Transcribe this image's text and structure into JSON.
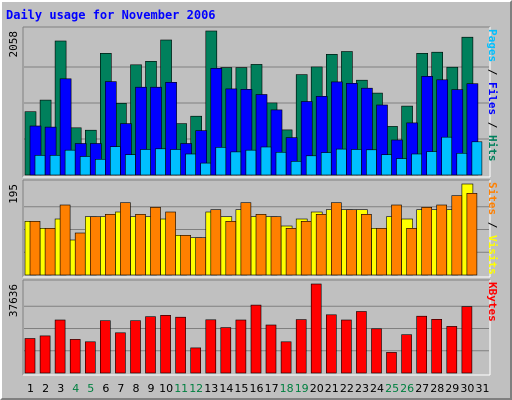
{
  "colors": {
    "background": "#c0c0c0",
    "hits": "#00805c",
    "files": "#0000ff",
    "pages": "#00c0ff",
    "visits": "#ffff00",
    "sites": "#ff8000",
    "kbytes": "#ff0000",
    "title": "#0000ff",
    "weekend_label": "#008040",
    "weekday_label": "#000000"
  },
  "chart_data": {
    "title": "Daily usage for November 2006",
    "days": [
      "1",
      "2",
      "3",
      "4",
      "5",
      "6",
      "7",
      "8",
      "9",
      "10",
      "11",
      "12",
      "13",
      "14",
      "15",
      "16",
      "17",
      "18",
      "19",
      "20",
      "21",
      "22",
      "23",
      "24",
      "25",
      "26",
      "27",
      "28",
      "29",
      "30",
      "31"
    ],
    "weekend_days": [
      "4",
      "5",
      "11",
      "12",
      "18",
      "19",
      "25",
      "26"
    ],
    "panels": [
      {
        "type": "bar",
        "ymax_label": "2058",
        "ymax": 2058,
        "label_parts": [
          {
            "text": "Pages",
            "color": "#00c0ff"
          },
          {
            "text": " / ",
            "color": "#000000"
          },
          {
            "text": "Files",
            "color": "#0000ff"
          },
          {
            "text": " / ",
            "color": "#000000"
          },
          {
            "text": "Hits",
            "color": "#00805c"
          }
        ],
        "series": [
          {
            "name": "Hits",
            "color": "#00805c",
            "values": [
              905,
              1070,
              1915,
              675,
              640,
              1740,
              1025,
              1575,
              1625,
              1930,
              735,
              840,
              2058,
              1535,
              1535,
              1580,
              1030,
              645,
              1435,
              1545,
              1725,
              1765,
              1355,
              1170,
              695,
              985,
              1740,
              1755,
              1540,
              1970,
              0
            ]
          },
          {
            "name": "Files",
            "color": "#0000ff",
            "values": [
              700,
              685,
              1375,
              450,
              450,
              1335,
              735,
              1255,
              1255,
              1325,
              450,
              635,
              1525,
              1230,
              1225,
              1150,
              930,
              535,
              1050,
              1125,
              1330,
              1310,
              1240,
              1000,
              500,
              745,
              1410,
              1360,
              1220,
              1305,
              0
            ]
          },
          {
            "name": "Pages",
            "color": "#00c0ff",
            "values": [
              280,
              280,
              355,
              265,
              225,
              405,
              290,
              365,
              375,
              365,
              300,
              170,
              395,
              330,
              355,
              400,
              325,
              195,
              275,
              320,
              370,
              365,
              360,
              290,
              235,
              300,
              335,
              540,
              310,
              475,
              0
            ]
          }
        ]
      },
      {
        "type": "bar",
        "ymax_label": "195",
        "ymax": 195,
        "label_parts": [
          {
            "text": "Sites",
            "color": "#ff8000"
          },
          {
            "text": " / ",
            "color": "#000000"
          },
          {
            "text": "Visits",
            "color": "#ffff00"
          }
        ],
        "series": [
          {
            "name": "Visits",
            "color": "#ffff00",
            "values": [
              115,
              100,
              120,
              75,
              125,
              125,
              135,
              125,
              125,
              120,
              85,
              80,
              135,
              125,
              140,
              125,
              125,
              105,
              120,
              135,
              140,
              140,
              140,
              100,
              125,
              120,
              140,
              140,
              140,
              195,
              0
            ]
          },
          {
            "name": "Sites",
            "color": "#ff8000",
            "values": [
              115,
              100,
              150,
              90,
              125,
              130,
              155,
              130,
              145,
              135,
              85,
              80,
              140,
              115,
              155,
              130,
              125,
              100,
              115,
              130,
              155,
              140,
              130,
              100,
              150,
              100,
              145,
              150,
              170,
              175,
              0
            ]
          }
        ]
      },
      {
        "type": "bar",
        "ymax_label": "37636",
        "ymax": 37636,
        "label_parts": [
          {
            "text": "KBytes",
            "color": "#ff0000"
          }
        ],
        "series": [
          {
            "name": "KBytes",
            "color": "#ff0000",
            "values": [
              14600,
              15700,
              22400,
              14200,
              13200,
              22100,
              17000,
              22100,
              23800,
              24400,
              23600,
              10600,
              22500,
              19200,
              22400,
              28700,
              20300,
              13200,
              22600,
              37636,
              24600,
              22400,
              26000,
              18700,
              8700,
              16200,
              24000,
              22700,
              19700,
              28100,
              0
            ]
          }
        ]
      }
    ]
  }
}
